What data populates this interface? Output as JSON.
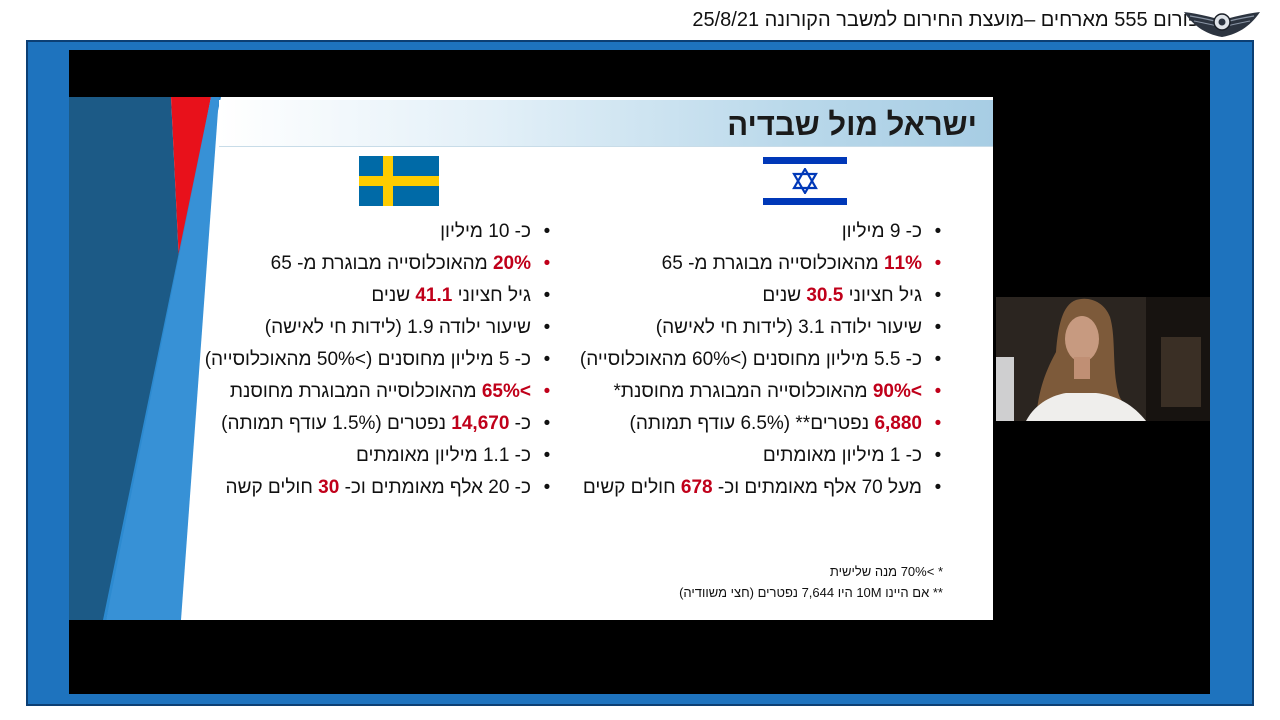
{
  "header": {
    "title": "פורום 555 מארחים –מועצת החירום למשבר הקורונה 25/8/21"
  },
  "slide": {
    "title": "ישראל מול שבדיה",
    "israel": {
      "items": [
        {
          "text": "כ- 9 מיליון"
        },
        {
          "hl": "11%",
          "text": " מהאוכלוסייה מבוגרת מ- 65"
        },
        {
          "pre": "גיל חציוני ",
          "hl": "30.5",
          "text": " שנים"
        },
        {
          "text": "שיעור ילודה   3.1 (לידות חי לאישה)"
        },
        {
          "text": "כ- 5.5 מיליון מחוסנים (>60% מהאוכלוסייה)"
        },
        {
          "hl": ">90%",
          "text": " מהאוכלוסייה המבוגרת מחוסנת*"
        },
        {
          "hl": "6,880",
          "text": " נפטרים** (6.5% עודף תמותה)"
        },
        {
          "text": "כ- 1 מיליון מאומתים"
        },
        {
          "pre": "מעל 70 אלף מאומתים וכ- ",
          "hl": "678",
          "text": " חולים קשים"
        }
      ],
      "footnote1": "* >70% מנה שלישית",
      "footnote2": "** אם היינו 10M היו 7,644 נפטרים (חצי משוודיה)"
    },
    "sweden": {
      "items": [
        {
          "text": "כ- 10 מיליון"
        },
        {
          "hl": "20%",
          "text": " מהאוכלוסייה מבוגרת מ- 65"
        },
        {
          "pre": "גיל חציוני ",
          "hl": "41.1",
          "text": " שנים"
        },
        {
          "text": "שיעור ילודה 1.9 (לידות חי לאישה)"
        },
        {
          "text": "כ- 5 מיליון מחוסנים (>50% מהאוכלוסייה)"
        },
        {
          "hl": ">65%",
          "text": " מהאוכלוסייה המבוגרת מחוסנת"
        },
        {
          "pre": "כ- ",
          "hl": "14,670",
          "text": " נפטרים (1.5% עודף תמותה)"
        },
        {
          "text": "כ- 1.1 מיליון מאומתים"
        },
        {
          "pre": "כ- 20 אלף מאומתים וכ- ",
          "hl": "30",
          "text": " חולים קשה"
        }
      ]
    }
  },
  "colors": {
    "frame": "#1e73be",
    "highlight": "#c0001a",
    "israel_blue": "#0038b8",
    "sweden_blue": "#006aa7",
    "sweden_yellow": "#fecc00"
  },
  "icons": {
    "logo": "air-force-wings-logo",
    "bullet": "bullet-dot"
  }
}
